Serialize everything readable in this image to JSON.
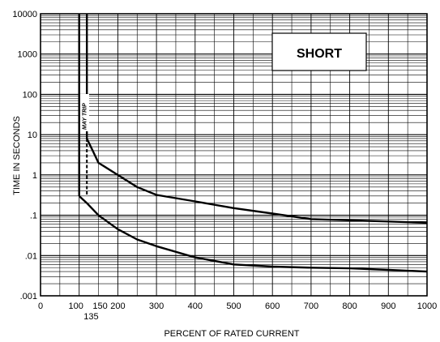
{
  "chart_data": {
    "type": "line",
    "title": "",
    "xlabel": "PERCENT OF RATED CURRENT",
    "ylabel": "TIME IN SECONDS",
    "xlim": [
      0,
      1000
    ],
    "ylim": [
      0.001,
      10000
    ],
    "yscale": "log",
    "grid": true,
    "x_ticks": [
      {
        "value": 0,
        "label": "0"
      },
      {
        "value": 100,
        "label": "100"
      },
      {
        "value": 150,
        "label": "150"
      },
      {
        "value": 200,
        "label": "200"
      },
      {
        "value": 300,
        "label": "300"
      },
      {
        "value": 400,
        "label": "400"
      },
      {
        "value": 500,
        "label": "500"
      },
      {
        "value": 600,
        "label": "600"
      },
      {
        "value": 700,
        "label": "700"
      },
      {
        "value": 800,
        "label": "800"
      },
      {
        "value": 900,
        "label": "900"
      },
      {
        "value": 1000,
        "label": "1000"
      }
    ],
    "x_secondary_tick": {
      "value": 135,
      "label": "135"
    },
    "y_ticks": [
      {
        "value": 0.001,
        "label": ".001"
      },
      {
        "value": 0.01,
        "label": ".01"
      },
      {
        "value": 0.1,
        "label": ".1"
      },
      {
        "value": 1,
        "label": "1"
      },
      {
        "value": 10,
        "label": "10"
      },
      {
        "value": 100,
        "label": "100"
      },
      {
        "value": 1000,
        "label": "1000"
      },
      {
        "value": 10000,
        "label": "10000"
      }
    ],
    "badge": "SHORT",
    "annotation": "MAY TRIP",
    "series": [
      {
        "style": "solid",
        "x": [
          100,
          100,
          100
        ],
        "y": [
          10000,
          1000,
          0.3
        ]
      },
      {
        "style": "solid",
        "x": [
          120,
          120,
          120
        ],
        "y": [
          10000,
          1000,
          8
        ]
      },
      {
        "style": "solid",
        "x": [
          120,
          135,
          150,
          200,
          250,
          300,
          400,
          500,
          600,
          700,
          800,
          900,
          1000
        ],
        "y": [
          8,
          4,
          2,
          1,
          0.5,
          0.32,
          0.22,
          0.15,
          0.11,
          0.08,
          0.075,
          0.07,
          0.065
        ]
      },
      {
        "style": "dashed",
        "x": [
          120,
          120
        ],
        "y": [
          8,
          0.3
        ]
      },
      {
        "style": "solid",
        "x": [
          100,
          120,
          150,
          200,
          250,
          300,
          400,
          500,
          600,
          700,
          800,
          900,
          1000
        ],
        "y": [
          0.3,
          0.2,
          0.1,
          0.045,
          0.025,
          0.017,
          0.009,
          0.006,
          0.0053,
          0.005,
          0.0048,
          0.0044,
          0.004
        ]
      }
    ]
  }
}
